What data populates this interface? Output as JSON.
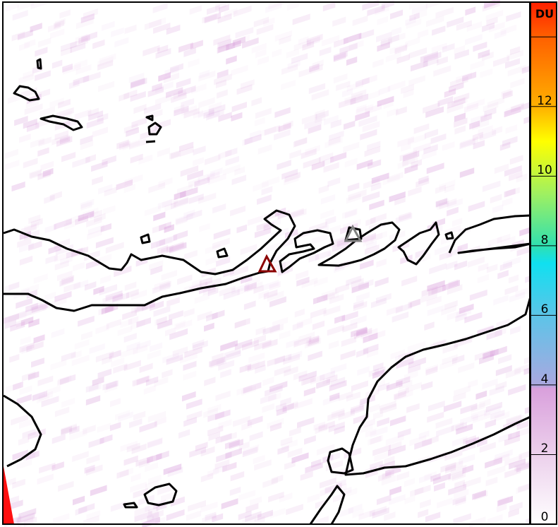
{
  "colorbar": {
    "unit": "DU",
    "min": 0,
    "max": 15,
    "ticks": [
      0,
      2,
      4,
      6,
      8,
      10,
      12,
      14
    ],
    "tick_labels": [
      "0",
      "2",
      "4",
      "6",
      "8",
      "10",
      "12",
      ""
    ],
    "colors": [
      {
        "v": 0,
        "c": "#ffffff"
      },
      {
        "v": 2,
        "c": "#ecd0ec"
      },
      {
        "v": 3.9,
        "c": "#d9a0dc"
      },
      {
        "v": 4,
        "c": "#aaa8e0"
      },
      {
        "v": 6,
        "c": "#5cc4e8"
      },
      {
        "v": 7.5,
        "c": "#10e0f0"
      },
      {
        "v": 8,
        "c": "#30e0b0"
      },
      {
        "v": 9.5,
        "c": "#a0f060"
      },
      {
        "v": 11,
        "c": "#ffff00"
      },
      {
        "v": 12,
        "c": "#ffb000"
      },
      {
        "v": 14,
        "c": "#ff6000"
      },
      {
        "v": 15,
        "c": "#ff2000"
      }
    ]
  },
  "markers": [
    {
      "name": "volcano-marker-primary",
      "color": "#8b0000"
    },
    {
      "name": "volcano-marker-secondary",
      "color": "#808080"
    }
  ],
  "field_color": "#d9a0dc",
  "coastline_color": "#000000"
}
